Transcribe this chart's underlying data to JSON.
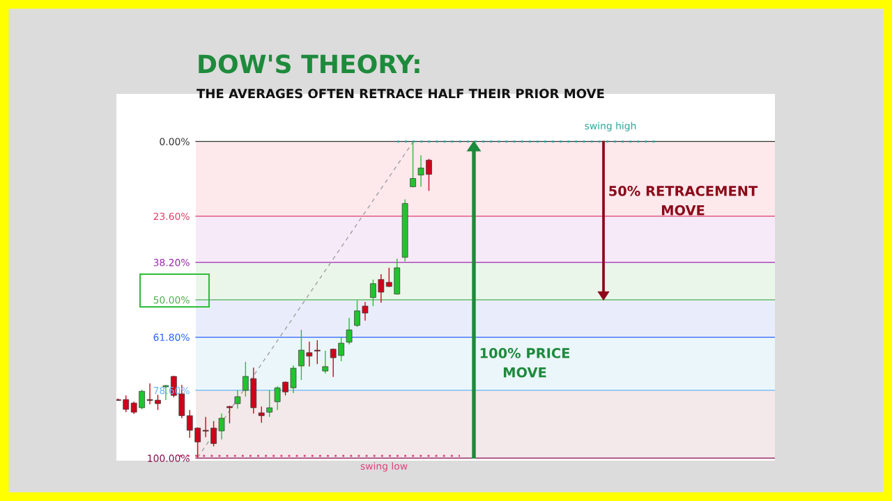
{
  "chart_data": {
    "type": "candlestick",
    "title": "DOW'S THEORY:",
    "subtitle": "THE AVERAGES OFTEN RETRACE HALF THEIR PRIOR MOVE",
    "categories": [
      null,
      null,
      null,
      null,
      null,
      null,
      null,
      null,
      null,
      null,
      null,
      null,
      null,
      null,
      null,
      null,
      null,
      null,
      null,
      null,
      null,
      null,
      null,
      null,
      null,
      null,
      null,
      null,
      null,
      null,
      null,
      null,
      null,
      null,
      null,
      null,
      null,
      null,
      null,
      null
    ],
    "ohlc": [
      [
        81.5,
        81.8,
        81.2,
        81.5
      ],
      [
        81.5,
        85.5,
        80.2,
        84.6
      ],
      [
        82.6,
        86.1,
        82.2,
        85.5
      ],
      [
        84.1,
        84.6,
        78.4,
        78.9
      ],
      [
        81.5,
        83.0,
        76.4,
        81.7
      ],
      [
        81.7,
        84.8,
        80.0,
        82.8
      ],
      [
        77.5,
        81.7,
        76.9,
        77.1
      ],
      [
        74.2,
        80.8,
        74.0,
        80.2
      ],
      [
        79.7,
        87.4,
        76.9,
        86.6
      ],
      [
        86.6,
        93.6,
        84.8,
        91.2
      ],
      [
        90.5,
        99.8,
        90.3,
        94.9
      ],
      [
        91.4,
        93.4,
        87.0,
        91.2
      ],
      [
        90.5,
        96.3,
        88.3,
        95.4
      ],
      [
        91.4,
        94.1,
        85.9,
        87.4
      ],
      [
        83.7,
        89.0,
        83.5,
        84.1
      ],
      [
        82.8,
        84.4,
        78.6,
        80.6
      ],
      [
        78.6,
        80.6,
        69.6,
        74.2
      ],
      [
        74.9,
        85.9,
        71.4,
        84.1
      ],
      [
        85.7,
        88.8,
        83.7,
        86.6
      ],
      [
        85.5,
        87.0,
        78.6,
        84.1
      ],
      [
        82.2,
        84.8,
        77.3,
        77.8
      ],
      [
        76.0,
        80.2,
        75.8,
        79.1
      ],
      [
        77.8,
        79.5,
        70.7,
        71.6
      ],
      [
        70.9,
        75.3,
        59.5,
        65.9
      ],
      [
        66.7,
        71.1,
        63.2,
        67.8
      ],
      [
        65.9,
        70.3,
        62.8,
        66.1
      ],
      [
        72.5,
        73.3,
        66.1,
        71.1
      ],
      [
        65.6,
        74.4,
        65.4,
        68.3
      ],
      [
        67.6,
        69.4,
        61.9,
        63.7
      ],
      [
        63.4,
        64.1,
        55.7,
        59.5
      ],
      [
        58.1,
        58.6,
        50.2,
        53.5
      ],
      [
        52.0,
        56.6,
        50.7,
        54.2
      ],
      [
        49.3,
        52.0,
        43.6,
        44.9
      ],
      [
        43.6,
        50.9,
        41.9,
        47.6
      ],
      [
        44.5,
        46.0,
        39.9,
        45.8
      ],
      [
        48.2,
        48.4,
        37.0,
        39.9
      ],
      [
        36.6,
        37.9,
        18.3,
        19.6
      ],
      [
        14.3,
        14.5,
        0.2,
        11.7
      ],
      [
        10.6,
        14.3,
        4.4,
        8.4
      ],
      [
        5.9,
        15.6,
        5.5,
        10.4
      ]
    ],
    "colors": [
      "#d0021b",
      "#d0021b",
      "#d0021b",
      "#22c32e",
      "#d0021b",
      "#d0021b",
      "#22c32e",
      "#d0021b",
      "#d0021b",
      "#d0021b",
      "#d0021b",
      "#d0021b",
      "#d0021b",
      "#22c32e",
      "#d0021b",
      "#22c32e",
      "#22c32e",
      "#d0021b",
      "#d0021b",
      "#22c32e",
      "#22c32e",
      "#d0021b",
      "#22c32e",
      "#22c32e",
      "#d0021b",
      "#d0021b",
      "#22c32e",
      "#d0021b",
      "#22c32e",
      "#22c32e",
      "#22c32e",
      "#d0021b",
      "#22c32e",
      "#d0021b",
      "#d0021b",
      "#22c32e",
      "#22c32e",
      "#22c32e",
      "#22c32e",
      "#d0021b"
    ],
    "series": [
      {
        "type": "line",
        "values": [
          null,
          null,
          null,
          null,
          null,
          null,
          null,
          null,
          null,
          null,
          99.8,
          null,
          null,
          null,
          null,
          null,
          null,
          null,
          null,
          null,
          null,
          null,
          null,
          null,
          null,
          null,
          null,
          null,
          null,
          null,
          null,
          null,
          null,
          null,
          null,
          null,
          null,
          0.2,
          null,
          null
        ],
        "color": "#9e9e9e",
        "line_style": "dashed"
      }
    ],
    "ylim": [
      100.8,
      -15
    ],
    "yticks": [
      {
        "value": 0,
        "label": "0.00%"
      },
      {
        "value": 23.6,
        "label": "23.60%"
      },
      {
        "value": 38.2,
        "label": "38.20%"
      },
      {
        "value": 50,
        "label": "50.00%"
      },
      {
        "value": 61.8,
        "label": "61.80%"
      },
      {
        "value": 78.6,
        "label": "78.60%"
      },
      {
        "value": 100,
        "label": "100.00%"
      }
    ],
    "tick_labels": "y",
    "ref_lines": [
      {
        "axis": "y",
        "value": 0,
        "color": "#333333"
      },
      {
        "axis": "y",
        "value": 23.6,
        "color": "#e0406a"
      },
      {
        "axis": "y",
        "value": 38.2,
        "color": "#9c27b0"
      },
      {
        "axis": "y",
        "value": 50,
        "color": "#4caf50"
      },
      {
        "axis": "y",
        "value": 61.8,
        "color": "#2962ff"
      },
      {
        "axis": "y",
        "value": 78.6,
        "color": "#64b5f6"
      },
      {
        "axis": "y",
        "value": 100,
        "color": "#880e4f"
      },
      {
        "axis": "y",
        "value": 0,
        "label": "swing high",
        "color": "#26a69a",
        "line_style": "dotted"
      },
      {
        "axis": "y",
        "value": 99.3,
        "label": "swing low",
        "color": "#e0407a",
        "line_style": "dotted"
      }
    ],
    "bands": [
      {
        "axis": "y",
        "from": 0,
        "to": 23.6,
        "color": "#fde8ec"
      },
      {
        "axis": "y",
        "from": 23.6,
        "to": 38.2,
        "color": "#f6eaf8"
      },
      {
        "axis": "y",
        "from": 38.2,
        "to": 50,
        "color": "#ebf6eb"
      },
      {
        "axis": "y",
        "from": 50,
        "to": 61.8,
        "color": "#e9edfb"
      },
      {
        "axis": "y",
        "from": 61.8,
        "to": 78.6,
        "color": "#ebf6fb"
      },
      {
        "axis": "y",
        "from": 78.6,
        "to": 100,
        "color": "#f3e9eb"
      }
    ],
    "annotations": [
      "50% RETRACEMENT MOVE",
      "100% PRICE MOVE"
    ],
    "grid": false,
    "legend": false
  }
}
